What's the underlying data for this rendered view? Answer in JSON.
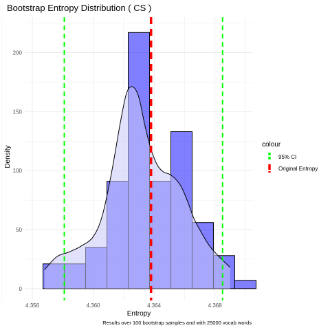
{
  "chart_data": {
    "type": "histogram",
    "title": "Bootstrap Entropy Distribution ( CS )",
    "xlabel": "Entropy",
    "ylabel": "Density",
    "caption": "Results over 100 bootstrap samples and with 25000 vocab words",
    "xlim": [
      4.3555,
      4.3705
    ],
    "ylim": [
      -10,
      230
    ],
    "x_ticks": [
      4.356,
      4.36,
      4.364,
      4.368
    ],
    "x_tick_labels": [
      "4.356",
      "4.360",
      "4.364",
      "4.368"
    ],
    "y_ticks": [
      0,
      50,
      100,
      150,
      200
    ],
    "y_tick_labels": [
      "0",
      "50",
      "100",
      "150",
      "200"
    ],
    "grid": true,
    "bins": [
      {
        "x0": 4.3567,
        "x1": 4.3581,
        "density": 21
      },
      {
        "x0": 4.3581,
        "x1": 4.3595,
        "density": 21
      },
      {
        "x0": 4.3595,
        "x1": 4.3609,
        "density": 35
      },
      {
        "x0": 4.3609,
        "x1": 4.3623,
        "density": 91
      },
      {
        "x0": 4.3623,
        "x1": 4.3637,
        "density": 217
      },
      {
        "x0": 4.3637,
        "x1": 4.3651,
        "density": 91
      },
      {
        "x0": 4.3651,
        "x1": 4.3665,
        "density": 133
      },
      {
        "x0": 4.3665,
        "x1": 4.3679,
        "density": 56
      },
      {
        "x0": 4.3679,
        "x1": 4.3693,
        "density": 28
      },
      {
        "x0": 4.3693,
        "x1": 4.3707,
        "density": 7
      }
    ],
    "density_curve": {
      "x": [
        4.3568,
        4.3576,
        4.3584,
        4.3592,
        4.36,
        4.3606,
        4.3612,
        4.3618,
        4.3622,
        4.3626,
        4.363,
        4.3634,
        4.3638,
        4.3642,
        4.3646,
        4.365,
        4.3654,
        4.3658,
        4.3662,
        4.3666,
        4.367,
        4.3676,
        4.3682,
        4.369
      ],
      "y": [
        16,
        27,
        31,
        36,
        44,
        62,
        98,
        142,
        166,
        171,
        162,
        138,
        118,
        105,
        99,
        97,
        93,
        86,
        74,
        60,
        50,
        37,
        28,
        18
      ]
    },
    "vlines": [
      {
        "name": "95% CI",
        "x": 4.3581,
        "color": "#00ff00",
        "style": "dashed"
      },
      {
        "name": "95% CI",
        "x": 4.3685,
        "color": "#00ff00",
        "style": "dashed"
      },
      {
        "name": "Original Entropy",
        "x": 4.3638,
        "color": "#ff0000",
        "style": "dashed"
      }
    ],
    "legend": {
      "title": "colour",
      "placement": "right",
      "entries": [
        {
          "label": "95% CI",
          "color": "#00ff00"
        },
        {
          "label": "Original Entropy",
          "color": "#ff0000"
        }
      ]
    },
    "colors": {
      "bar_fill": "#0000ff",
      "bar_stroke": "#000000",
      "curve_fill": "#c8c8f8",
      "curve_stroke": "#000000",
      "grid": "#ebebeb"
    }
  }
}
